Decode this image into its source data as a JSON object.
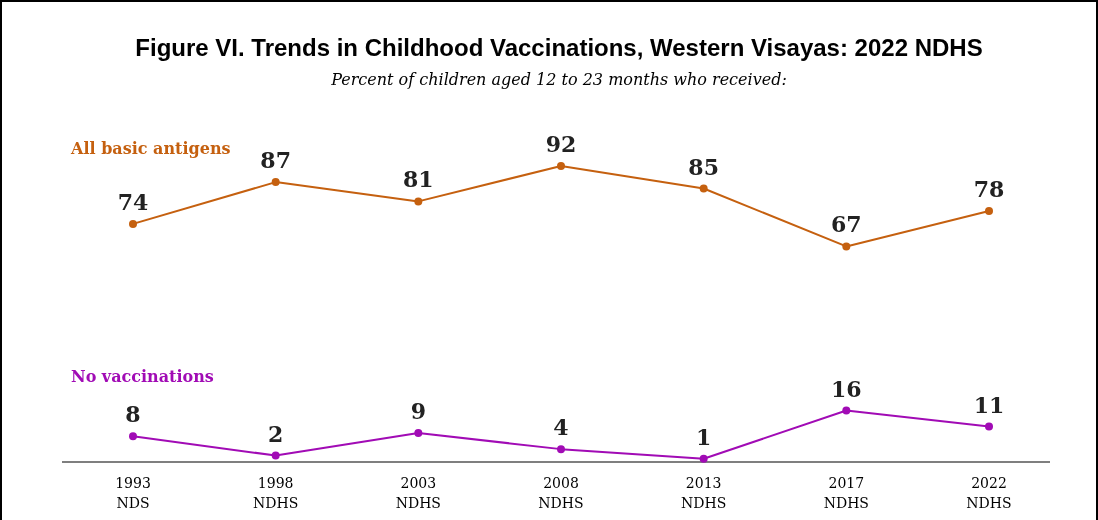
{
  "chart_data": {
    "type": "line",
    "title": "Figure VI. Trends in Childhood Vaccinations, Western Visayas: 2022 NDHS",
    "subtitle": "Percent of children aged 12 to 23 months who received:",
    "categories": [
      "1993\nNDS",
      "1998\nNDHS",
      "2003\nNDHS",
      "2008\nNDHS",
      "2013\nNDHS",
      "2017\nNDHS",
      "2022\nNDHS"
    ],
    "series": [
      {
        "name": "All basic antigens",
        "color": "#c5600f",
        "values": [
          74,
          87,
          81,
          92,
          85,
          67,
          78
        ]
      },
      {
        "name": "No vaccinations",
        "color": "#a10bb5",
        "values": [
          8,
          2,
          9,
          4,
          1,
          16,
          11
        ]
      }
    ],
    "data_labels": true,
    "marker": "circle"
  }
}
